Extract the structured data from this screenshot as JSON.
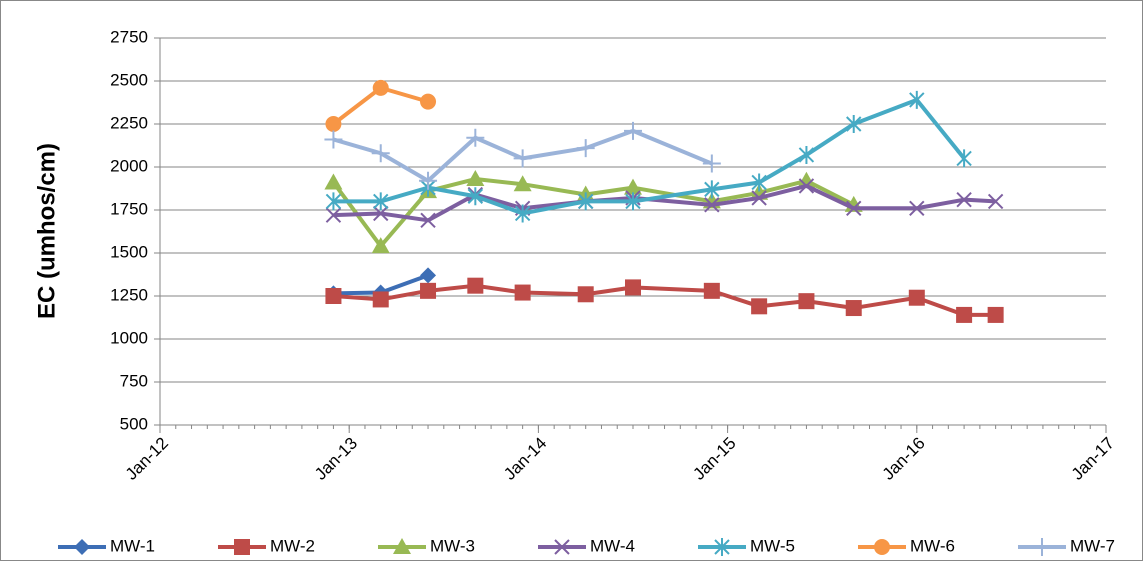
{
  "chart_data": {
    "type": "line",
    "y_label": "EC (umhos/cm)",
    "x": [
      "2012-12",
      "2013-03",
      "2013-06",
      "2013-09",
      "2013-12",
      "2014-04",
      "2014-07",
      "2014-12",
      "2015-03",
      "2015-06",
      "2015-09",
      "2016-01",
      "2016-04",
      "2016-06"
    ],
    "xlim": [
      "2012-01",
      "2017-01"
    ],
    "xticks": [
      {
        "value": "2012-01",
        "label": "Jan-12"
      },
      {
        "value": "2013-01",
        "label": "Jan-13"
      },
      {
        "value": "2014-01",
        "label": "Jan-14"
      },
      {
        "value": "2015-01",
        "label": "Jan-15"
      },
      {
        "value": "2016-01",
        "label": "Jan-16"
      },
      {
        "value": "2017-01",
        "label": "Jan-17"
      }
    ],
    "ylim": [
      500,
      2750
    ],
    "yticks": [
      500,
      750,
      1000,
      1250,
      1500,
      1750,
      2000,
      2250,
      2500,
      2750
    ],
    "grid": true,
    "legend": "bottom",
    "series": [
      {
        "name": "MW-1",
        "color": "#3d6eb5",
        "marker": "diamond",
        "values": [
          1265,
          1270,
          1370,
          null,
          null,
          null,
          null,
          null,
          null,
          null,
          null,
          null,
          null,
          null
        ]
      },
      {
        "name": "MW-2",
        "color": "#be4b48",
        "marker": "square",
        "values": [
          1250,
          1230,
          1280,
          1310,
          1270,
          1260,
          1300,
          1280,
          1190,
          1220,
          1180,
          1240,
          1140,
          1140
        ]
      },
      {
        "name": "MW-3",
        "color": "#98b954",
        "marker": "triangle",
        "values": [
          1910,
          1540,
          1860,
          1930,
          1900,
          1840,
          1880,
          1800,
          1850,
          1920,
          1780,
          null,
          null,
          null
        ]
      },
      {
        "name": "MW-4",
        "color": "#7d5fa0",
        "marker": "x",
        "values": [
          1720,
          1730,
          1690,
          1840,
          1760,
          1800,
          1820,
          1780,
          1820,
          1890,
          1760,
          1760,
          1810,
          1800
        ]
      },
      {
        "name": "MW-5",
        "color": "#46aac4",
        "marker": "star",
        "values": [
          1800,
          1800,
          1880,
          1830,
          1730,
          1800,
          1800,
          1870,
          1910,
          2070,
          2250,
          2390,
          2050,
          null
        ]
      },
      {
        "name": "MW-6",
        "color": "#f79646",
        "marker": "circle",
        "values": [
          2250,
          2460,
          2380,
          null,
          null,
          null,
          null,
          null,
          null,
          null,
          null,
          null,
          null,
          null
        ]
      },
      {
        "name": "MW-7",
        "color": "#9bb3d9",
        "marker": "plus",
        "values": [
          2160,
          2080,
          1920,
          2170,
          2050,
          2110,
          2210,
          2020,
          null,
          null,
          null,
          null,
          null,
          null
        ]
      }
    ]
  }
}
